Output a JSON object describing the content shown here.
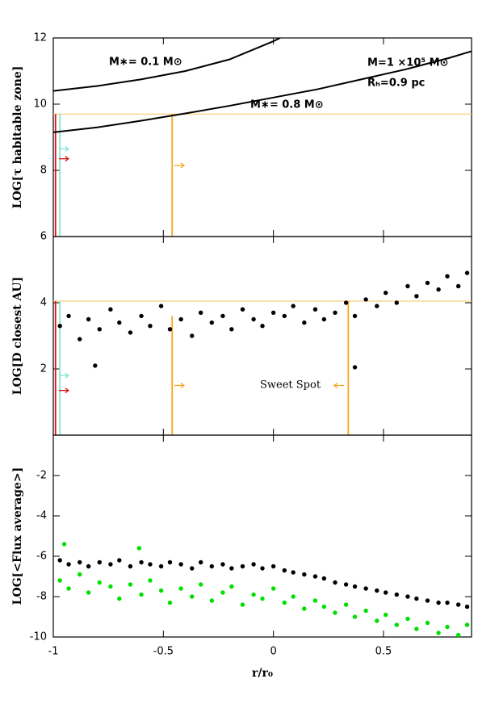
{
  "chart_data": [
    {
      "type": "line",
      "ylabel": "LOG[τ habitable zone]",
      "xlim": [
        -1,
        0.9
      ],
      "ylim": [
        6,
        12
      ],
      "yticks": [
        8,
        10,
        12
      ],
      "xticks": [
        -1,
        -0.5,
        0,
        0.5
      ],
      "series": [
        {
          "color": "#000000",
          "x": [
            -1,
            -0.8,
            -0.6,
            -0.4,
            -0.2,
            0,
            0.03
          ],
          "y": [
            10.4,
            10.55,
            10.75,
            11.0,
            11.35,
            11.9,
            12.0
          ]
        },
        {
          "color": "#000000",
          "x": [
            -1,
            -0.8,
            -0.6,
            -0.4,
            -0.2,
            0,
            0.2,
            0.4,
            0.6,
            0.8,
            0.9
          ],
          "y": [
            9.15,
            9.3,
            9.5,
            9.72,
            9.95,
            10.2,
            10.45,
            10.75,
            11.05,
            11.4,
            11.6
          ]
        }
      ],
      "hlines": [
        {
          "y": 9.7,
          "color": "#f7c86a"
        }
      ],
      "vlines": [
        {
          "x": -0.99,
          "y": 9.7,
          "color": "#e01010"
        },
        {
          "x": -0.97,
          "y": 9.7,
          "color": "#7fe6d8"
        },
        {
          "x": -0.46,
          "y": 9.7,
          "color": "#f5a623"
        }
      ],
      "arrows": [
        {
          "x": -0.975,
          "y": 8.65,
          "dir": "right",
          "color": "#7fe6d8"
        },
        {
          "x": -0.975,
          "y": 8.35,
          "dir": "right",
          "color": "#e01010"
        },
        {
          "x": -0.45,
          "y": 8.15,
          "dir": "right",
          "color": "#f5a623"
        }
      ],
      "annotations": [
        "M∗= 0.1  M⊙",
        "M∗= 0.8  M⊙",
        "M=1  ×10⁵ M⊙",
        "Rₕ=0.9  pc"
      ]
    },
    {
      "type": "scatter",
      "ylabel": "LOG[D closest  AU]",
      "xlim": [
        -1,
        0.9
      ],
      "ylim": [
        0,
        6
      ],
      "yticks": [
        2,
        4,
        6
      ],
      "xticks": [
        -1,
        -0.5,
        0,
        0.5
      ],
      "series": [
        {
          "color": "#000000",
          "x": [
            -0.97,
            -0.93,
            -0.88,
            -0.84,
            -0.79,
            -0.74,
            -0.7,
            -0.65,
            -0.6,
            -0.56,
            -0.51,
            -0.47,
            -0.42,
            -0.37,
            -0.33,
            -0.28,
            -0.23,
            -0.19,
            -0.14,
            -0.09,
            -0.05,
            0.0,
            0.05,
            0.09,
            0.14,
            0.19,
            0.23,
            0.28,
            0.33,
            0.37,
            0.42,
            0.47,
            0.51,
            0.56,
            0.61,
            0.65,
            0.7,
            0.75,
            0.79,
            0.84,
            0.88,
            -0.81,
            0.37
          ],
          "y": [
            3.3,
            3.6,
            2.9,
            3.5,
            3.2,
            3.8,
            3.4,
            3.1,
            3.6,
            3.3,
            3.9,
            3.2,
            3.5,
            3.0,
            3.7,
            3.4,
            3.6,
            3.2,
            3.8,
            3.5,
            3.3,
            3.7,
            3.6,
            3.9,
            3.4,
            3.8,
            3.5,
            3.7,
            4.0,
            3.6,
            4.1,
            3.9,
            4.3,
            4.0,
            4.5,
            4.2,
            4.6,
            4.4,
            4.8,
            4.5,
            4.9,
            2.1,
            2.05
          ]
        }
      ],
      "hlines": [
        {
          "y": 4.05,
          "color": "#f7c86a"
        }
      ],
      "vlines": [
        {
          "x": -0.99,
          "y": 4.05,
          "color": "#e01010"
        },
        {
          "x": -0.97,
          "y": 4.05,
          "color": "#7fe6d8"
        },
        {
          "x": -0.46,
          "y": 3.6,
          "color": "#f5a623"
        },
        {
          "x": 0.34,
          "y": 4.05,
          "color": "#f5a623"
        }
      ],
      "arrows": [
        {
          "x": -0.975,
          "y": 1.8,
          "dir": "right",
          "color": "#7fe6d8"
        },
        {
          "x": -0.975,
          "y": 1.35,
          "dir": "right",
          "color": "#e01010"
        },
        {
          "x": -0.45,
          "y": 1.5,
          "dir": "right",
          "color": "#f5a623"
        },
        {
          "x": 0.32,
          "y": 1.5,
          "dir": "left",
          "color": "#f5a623"
        }
      ],
      "annotations": [
        "Sweet Spot"
      ]
    },
    {
      "type": "scatter",
      "ylabel": "LOG[<Flux average>]",
      "xlabel": "r/r₀",
      "xlim": [
        -1,
        0.9
      ],
      "ylim": [
        -10,
        0
      ],
      "yticks": [
        -10,
        -8,
        -6,
        -4,
        -2
      ],
      "xticks": [
        -1,
        -0.5,
        0,
        0.5
      ],
      "series": [
        {
          "color": "#00e000",
          "x": [
            -0.97,
            -0.93,
            -0.88,
            -0.84,
            -0.79,
            -0.74,
            -0.7,
            -0.65,
            -0.6,
            -0.56,
            -0.51,
            -0.47,
            -0.42,
            -0.37,
            -0.33,
            -0.28,
            -0.23,
            -0.19,
            -0.14,
            -0.09,
            -0.05,
            0.0,
            0.05,
            0.09,
            0.14,
            0.19,
            0.23,
            0.28,
            0.33,
            0.37,
            0.42,
            0.47,
            0.51,
            0.56,
            0.61,
            0.65,
            0.7,
            0.75,
            0.79,
            0.84,
            0.88,
            -0.95,
            -0.61
          ],
          "y": [
            -7.2,
            -7.6,
            -6.9,
            -7.8,
            -7.3,
            -7.5,
            -8.1,
            -7.4,
            -7.9,
            -7.2,
            -7.7,
            -8.3,
            -7.6,
            -8.0,
            -7.4,
            -8.2,
            -7.8,
            -7.5,
            -8.4,
            -7.9,
            -8.1,
            -7.6,
            -8.3,
            -8.0,
            -8.6,
            -8.2,
            -8.5,
            -8.8,
            -8.4,
            -9.0,
            -8.7,
            -9.2,
            -8.9,
            -9.4,
            -9.1,
            -9.6,
            -9.3,
            -9.8,
            -9.5,
            -9.9,
            -9.4,
            -5.4,
            -5.6
          ]
        },
        {
          "color": "#000000",
          "x": [
            -0.97,
            -0.93,
            -0.88,
            -0.84,
            -0.79,
            -0.74,
            -0.7,
            -0.65,
            -0.6,
            -0.56,
            -0.51,
            -0.47,
            -0.42,
            -0.37,
            -0.33,
            -0.28,
            -0.23,
            -0.19,
            -0.14,
            -0.09,
            -0.05,
            0.0,
            0.05,
            0.09,
            0.14,
            0.19,
            0.23,
            0.28,
            0.33,
            0.37,
            0.42,
            0.47,
            0.51,
            0.56,
            0.61,
            0.65,
            0.7,
            0.75,
            0.79,
            0.84,
            0.88
          ],
          "y": [
            -6.2,
            -6.4,
            -6.3,
            -6.5,
            -6.3,
            -6.4,
            -6.2,
            -6.5,
            -6.3,
            -6.4,
            -6.5,
            -6.3,
            -6.4,
            -6.6,
            -6.3,
            -6.5,
            -6.4,
            -6.6,
            -6.5,
            -6.4,
            -6.6,
            -6.5,
            -6.7,
            -6.8,
            -6.9,
            -7.0,
            -7.1,
            -7.3,
            -7.4,
            -7.5,
            -7.6,
            -7.7,
            -7.8,
            -7.9,
            -8.0,
            -8.1,
            -8.2,
            -8.3,
            -8.3,
            -8.4,
            -8.5
          ]
        }
      ]
    }
  ]
}
